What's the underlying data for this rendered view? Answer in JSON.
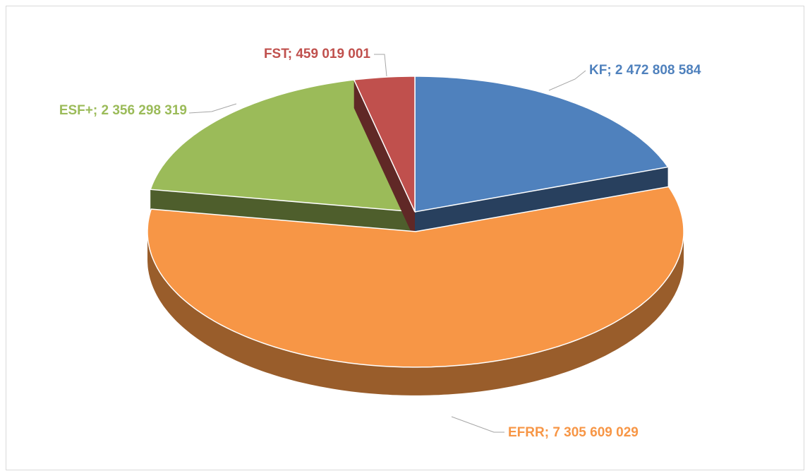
{
  "chart_data": {
    "type": "pie",
    "values": [
      2472808584,
      7305609029,
      2356298319,
      459019001
    ],
    "value_labels": [
      "KF; 2 472 808 584",
      "EFRR; 7 305 609 029",
      "ESF+; 2 356 298 319",
      "FST; 459 019 001"
    ],
    "colors": [
      "#4f81bd",
      "#f79646",
      "#9bbb59",
      "#c0504d"
    ]
  }
}
